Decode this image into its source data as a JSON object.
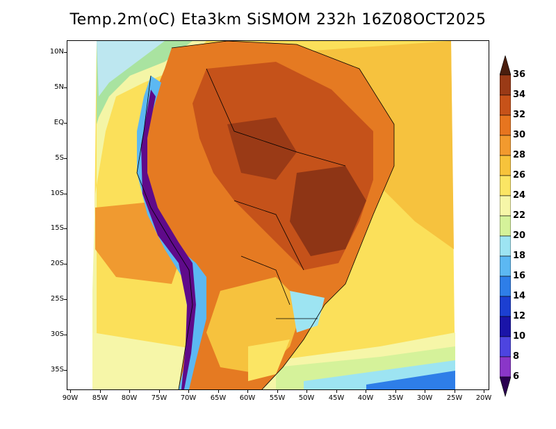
{
  "title": "Temp.2m(oC) Eta3km SiSMOM 232h 16Z08OCT2025",
  "map": {
    "type": "temperature-contour-map",
    "variable": "Temp.2m",
    "units": "oC",
    "region": "South America",
    "lat_labels": [
      "10N",
      "5N",
      "EQ",
      "5S",
      "10S",
      "15S",
      "20S",
      "25S",
      "30S",
      "35S"
    ],
    "lon_labels": [
      "90W",
      "85W",
      "80W",
      "75W",
      "70W",
      "65W",
      "60W",
      "55W",
      "50W",
      "45W",
      "40W",
      "35W",
      "30W",
      "25W",
      "20W"
    ]
  },
  "colorbar": {
    "labels": [
      "36",
      "34",
      "32",
      "30",
      "28",
      "26",
      "24",
      "22",
      "20",
      "18",
      "16",
      "14",
      "12",
      "10",
      "8",
      "6"
    ],
    "colors": [
      "#6e2a14",
      "#9a3a16",
      "#c75219",
      "#e7751f",
      "#f29a2e",
      "#f7c33b",
      "#fbe564",
      "#f6f6a8",
      "#d5f29a",
      "#9de4f2",
      "#5cb8f2",
      "#2e7ee8",
      "#1c3fd1",
      "#1a14a8",
      "#4d44e0",
      "#8a36c8",
      "#5f0a8a",
      "#3a0060"
    ],
    "top_color": "#4a1e0e",
    "bottom_color": "#2a0050"
  }
}
